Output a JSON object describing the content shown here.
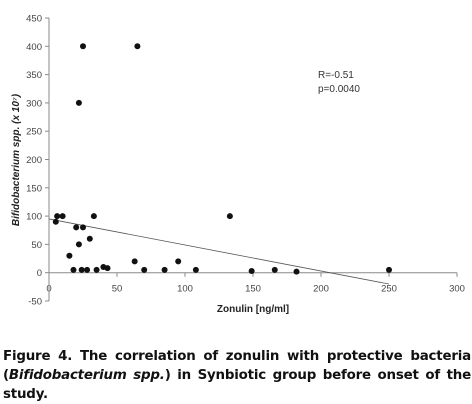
{
  "chart_data": {
    "type": "scatter",
    "xlabel": "Zonulin [ng/ml]",
    "ylabel": "Bifidobacterium spp. (x 10⁷)",
    "xlim": [
      0,
      300
    ],
    "ylim": [
      -50,
      450
    ],
    "x_ticks": [
      "0",
      "50",
      "100",
      "150",
      "200",
      "250",
      "300"
    ],
    "y_ticks": [
      "-50",
      "0",
      "50",
      "100",
      "150",
      "200",
      "250",
      "300",
      "350",
      "400",
      "450"
    ],
    "grid": false,
    "annotations": [
      "R=-0.51",
      "p=0.0040"
    ],
    "points": [
      {
        "x": 5,
        "y": 90
      },
      {
        "x": 6,
        "y": 100
      },
      {
        "x": 10,
        "y": 100
      },
      {
        "x": 15,
        "y": 30
      },
      {
        "x": 18,
        "y": 5
      },
      {
        "x": 20,
        "y": 80
      },
      {
        "x": 22,
        "y": 50
      },
      {
        "x": 22,
        "y": 300
      },
      {
        "x": 24,
        "y": 5
      },
      {
        "x": 25,
        "y": 80
      },
      {
        "x": 25,
        "y": 400
      },
      {
        "x": 28,
        "y": 5
      },
      {
        "x": 30,
        "y": 60
      },
      {
        "x": 33,
        "y": 100
      },
      {
        "x": 35,
        "y": 5
      },
      {
        "x": 40,
        "y": 10
      },
      {
        "x": 43,
        "y": 8
      },
      {
        "x": 63,
        "y": 20
      },
      {
        "x": 65,
        "y": 400
      },
      {
        "x": 70,
        "y": 5
      },
      {
        "x": 85,
        "y": 5
      },
      {
        "x": 95,
        "y": 20
      },
      {
        "x": 108,
        "y": 5
      },
      {
        "x": 133,
        "y": 100
      },
      {
        "x": 149,
        "y": 3
      },
      {
        "x": 166,
        "y": 5
      },
      {
        "x": 182,
        "y": 2
      },
      {
        "x": 250,
        "y": 5
      }
    ],
    "trendline": {
      "x": [
        0,
        250
      ],
      "y": [
        95,
        -20
      ]
    }
  },
  "caption": {
    "part1": "Figure 4. The correlation of zonulin with protective bacteria (",
    "italic1": "Bifidobacterium spp.",
    "part2": ") in Synbiotic group before onset of the study."
  }
}
